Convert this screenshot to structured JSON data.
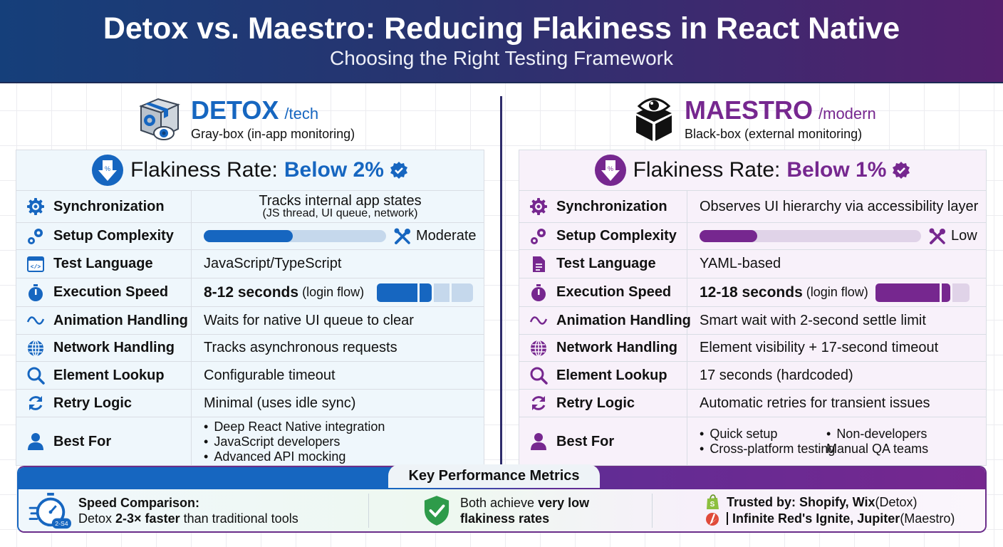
{
  "header": {
    "title": "Detox vs. Maestro: Reducing Flakiness in React Native",
    "subtitle": "Choosing the Right Testing Framework"
  },
  "colors": {
    "detox_accent": "#1666c0",
    "maestro_accent": "#76278f",
    "header_gradient_start": "#153f7a",
    "header_gradient_end": "#54206e",
    "success_green": "#2e9b4a"
  },
  "detox": {
    "name": "DETOX",
    "tag": "/tech",
    "description": "Gray-box (in-app monitoring)",
    "logo_icon": "box-with-gear-and-eye-icon",
    "flakiness": {
      "label": "Flakiness Rate:",
      "value": "Below 2%"
    },
    "rows": {
      "synchronization": {
        "label": "Synchronization",
        "icon": "gear-icon",
        "value": "Tracks internal app states",
        "sub": "(JS thread, UI queue, network)"
      },
      "setup": {
        "label": "Setup Complexity",
        "icon": "gears-icon",
        "progress_pct": 49,
        "value": "Moderate"
      },
      "language": {
        "label": "Test Language",
        "icon": "code-window-icon",
        "value": "JavaScript/TypeScript"
      },
      "speed": {
        "label": "Execution Speed",
        "icon": "stopwatch-icon",
        "value": "8-12 seconds",
        "note": "(login flow)",
        "segments_filled": 2,
        "segments_total": 4
      },
      "animation": {
        "label": "Animation Handling",
        "icon": "wave-icon",
        "value": "Waits for native UI queue to clear"
      },
      "network": {
        "label": "Network Handling",
        "icon": "globe-icon",
        "value": "Tracks asynchronous requests"
      },
      "lookup": {
        "label": "Element Lookup",
        "icon": "search-icon",
        "value": "Configurable timeout"
      },
      "retry": {
        "label": "Retry Logic",
        "icon": "refresh-icon",
        "value": "Minimal (uses idle sync)"
      },
      "best_for": {
        "label": "Best For",
        "icon": "user-icon",
        "items": [
          "Deep React Native integration",
          "JavaScript developers",
          "Advanced API mocking"
        ]
      }
    }
  },
  "maestro": {
    "name": "MAESTRO",
    "tag": "/modern",
    "description": "Black-box (external monitoring)",
    "logo_icon": "cube-with-eye-icon",
    "flakiness": {
      "label": "Flakiness Rate:",
      "value": "Below 1%"
    },
    "rows": {
      "synchronization": {
        "label": "Synchronization",
        "icon": "gear-icon",
        "value": "Observes UI hierarchy via accessibility layer"
      },
      "setup": {
        "label": "Setup Complexity",
        "icon": "gears-icon",
        "progress_pct": 26,
        "value": "Low"
      },
      "language": {
        "label": "Test Language",
        "icon": "document-icon",
        "value": "YAML-based"
      },
      "speed": {
        "label": "Execution Speed",
        "icon": "stopwatch-icon",
        "value": "12-18 seconds",
        "note": "(login flow)",
        "segments_filled": 2,
        "segments_total": 3
      },
      "animation": {
        "label": "Animation Handling",
        "icon": "wave-icon",
        "value": "Smart wait with 2-second settle limit"
      },
      "network": {
        "label": "Network Handling",
        "icon": "globe-icon",
        "value": "Element visibility + 17-second timeout"
      },
      "lookup": {
        "label": "Element Lookup",
        "icon": "search-icon",
        "value": "17 seconds (hardcoded)"
      },
      "retry": {
        "label": "Retry Logic",
        "icon": "refresh-icon",
        "value": "Automatic retries for transient issues"
      },
      "best_for": {
        "label": "Best For",
        "icon": "user-icon",
        "items": [
          "Quick setup",
          "Non-developers",
          "Cross-platform testing",
          "Manual QA teams"
        ]
      }
    }
  },
  "metrics": {
    "title": "Key Performance Metrics",
    "speed": {
      "heading": "Speed Comparison:",
      "prefix": "Detox ",
      "bold": "2-3× faster",
      "suffix": " than traditional tools",
      "badge": "2-S4"
    },
    "flakiness": {
      "prefix": "Both achieve ",
      "bold1": "very low",
      "bold2": "flakiness rates"
    },
    "trusted": {
      "line1_bold": "Trusted by: Shopify, Wix",
      "line1_note": " (Detox)",
      "line2_bold": "Infinite Red's Ignite, Jupiter",
      "line2_note": " (Maestro)"
    }
  }
}
